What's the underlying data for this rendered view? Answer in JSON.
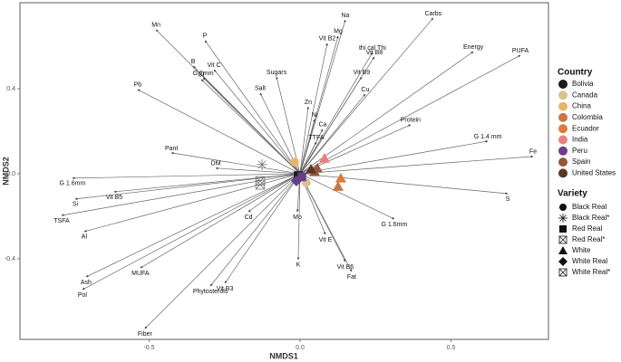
{
  "chart_data": {
    "type": "scatter",
    "xlabel": "NMDS1",
    "ylabel": "NMDS2",
    "xlim": [
      -0.928,
      0.823
    ],
    "ylim": [
      -0.779,
      0.804
    ],
    "xticks": [
      -0.5,
      {
        "value": 0,
        "label": "0.0"
      },
      0.5
    ],
    "yticks": [
      -0.4,
      {
        "value": 0,
        "label": "0.0"
      },
      0.4
    ],
    "vectors": {
      "labels": [
        "Mn",
        "P",
        "Vit C",
        "G 2mm",
        "B",
        "Cr",
        "Pb",
        "Sugars",
        "Salt",
        "Na",
        "Mg",
        "Vit B2",
        "Carbs",
        "Energy",
        "PUFA",
        "thi cal Thi",
        "Vit B8",
        "Vit B9",
        "Cu",
        "Zn",
        "Ni",
        "Ca",
        "TTFA",
        "Protein",
        "G 1.4 mm",
        "Fe",
        "S",
        "G 1.6mm",
        "Pant",
        "DM",
        "G 1.6mm",
        "Vit B5",
        "Si",
        "TSFA",
        "Al",
        "Cd",
        "Mo",
        "K",
        "Vit E",
        "Vit B6",
        "Fat",
        "Ash",
        "MUFA",
        "Pol",
        "Vit B3",
        "Phytosterols",
        "Fiber"
      ],
      "x": [
        -0.477,
        -0.315,
        -0.285,
        -0.321,
        -0.354,
        -0.327,
        -0.538,
        -0.078,
        -0.132,
        0.15,
        0.126,
        0.09,
        0.441,
        0.574,
        0.73,
        0.24,
        0.246,
        0.204,
        0.216,
        0.027,
        0.048,
        0.075,
        0.054,
        0.366,
        0.622,
        0.772,
        0.688,
        0.312,
        -0.426,
        -0.279,
        -0.754,
        -0.616,
        -0.745,
        -0.79,
        -0.715,
        -0.171,
        -0.009,
        -0.006,
        0.084,
        0.15,
        0.171,
        -0.709,
        -0.529,
        -0.721,
        -0.249,
        -0.297,
        -0.514
      ],
      "y": [
        0.677,
        0.626,
        0.489,
        0.451,
        0.506,
        0.443,
        0.396,
        0.455,
        0.379,
        0.723,
        0.647,
        0.613,
        0.732,
        0.574,
        0.557,
        0.57,
        0.549,
        0.455,
        0.374,
        0.315,
        0.255,
        0.209,
        0.149,
        0.23,
        0.153,
        0.081,
        -0.094,
        -0.213,
        0.098,
        0.026,
        -0.021,
        -0.085,
        -0.119,
        -0.196,
        -0.272,
        -0.179,
        -0.179,
        -0.404,
        -0.285,
        -0.413,
        -0.46,
        -0.485,
        -0.443,
        -0.545,
        -0.515,
        -0.528,
        -0.728
      ]
    },
    "legend_country_title": "Country",
    "legend_variety_title": "Variety",
    "series": [
      {
        "name": "Bolivia",
        "color": "#1a1a1a",
        "x": [
          -0.006,
          -0.126,
          -0.132,
          -0.132
        ],
        "y": [
          -0.009,
          0.043,
          -0.034,
          -0.052
        ],
        "variety": [
          "Red Real",
          "Black Real*",
          "Red Real*",
          "White Real*"
        ]
      },
      {
        "name": "Canada",
        "color": "#d6c48e",
        "x": [
          0.021
        ],
        "y": [
          -0.043
        ],
        "variety": [
          "Black Real"
        ]
      },
      {
        "name": "China",
        "color": "#e8b46a",
        "x": [
          -0.018
        ],
        "y": [
          0.055
        ],
        "variety": [
          "Black Real"
        ]
      },
      {
        "name": "Colombia",
        "color": "#c8773f",
        "x": [
          0.126
        ],
        "y": [
          -0.06
        ],
        "variety": [
          "White"
        ]
      },
      {
        "name": "Ecuador",
        "color": "#dd7a3a",
        "x": [
          0.135
        ],
        "y": [
          -0.021
        ],
        "variety": [
          "White"
        ]
      },
      {
        "name": "India",
        "color": "#ea7f7f",
        "x": [
          0.081
        ],
        "y": [
          0.072
        ],
        "variety": [
          "White"
        ]
      },
      {
        "name": "Peru",
        "color": "#6a3d8c",
        "x": [
          0.006,
          -0.012
        ],
        "y": [
          -0.015,
          -0.034
        ],
        "variety": [
          "Red Real",
          "White Real"
        ]
      },
      {
        "name": "Spain",
        "color": "#95563f",
        "x": [
          0.057,
          0.048
        ],
        "y": [
          0.026,
          0.009
        ],
        "variety": [
          "White",
          "White"
        ]
      },
      {
        "name": "United States",
        "color": "#5a3822",
        "x": [
          0.036
        ],
        "y": [
          0.021
        ],
        "variety": [
          "White"
        ]
      }
    ],
    "varieties": [
      {
        "name": "Black Real",
        "shape": "circle"
      },
      {
        "name": "Black Real*",
        "shape": "asterisk"
      },
      {
        "name": "Red Real",
        "shape": "square"
      },
      {
        "name": "Red Real*",
        "shape": "boxx"
      },
      {
        "name": "White",
        "shape": "triangle"
      },
      {
        "name": "White Real",
        "shape": "diamond"
      },
      {
        "name": "White Real*",
        "shape": "boxx"
      }
    ]
  }
}
